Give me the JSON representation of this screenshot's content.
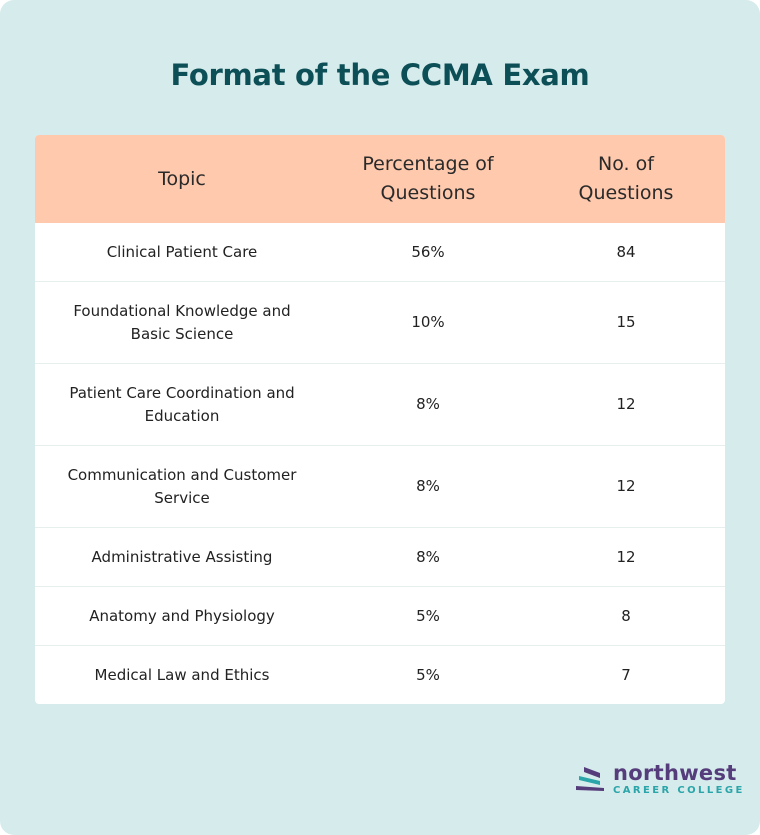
{
  "title": "Format of the CCMA Exam",
  "table": {
    "headers": [
      "Topic",
      "Percentage of Questions",
      "No. of Questions"
    ],
    "rows": [
      [
        "Clinical Patient Care",
        "56%",
        "84"
      ],
      [
        "Foundational Knowledge and Basic Science",
        "10%",
        "15"
      ],
      [
        "Patient Care Coordination and Education",
        "8%",
        "12"
      ],
      [
        "Communication and Customer Service",
        "8%",
        "12"
      ],
      [
        "Administrative Assisting",
        "8%",
        "12"
      ],
      [
        "Anatomy and Physiology",
        "5%",
        "8"
      ],
      [
        "Medical Law and Ethics",
        "5%",
        "7"
      ]
    ]
  },
  "logo": {
    "name": "northwest",
    "subtitle": "CAREER COLLEGE",
    "icon": "stacked-stripes-logo-icon"
  },
  "colors": {
    "background": "#d6ebec",
    "title": "#0d4f57",
    "header_fill": "#fec9ad",
    "logo_purple": "#553c7b",
    "logo_teal": "#2aa5a9"
  }
}
